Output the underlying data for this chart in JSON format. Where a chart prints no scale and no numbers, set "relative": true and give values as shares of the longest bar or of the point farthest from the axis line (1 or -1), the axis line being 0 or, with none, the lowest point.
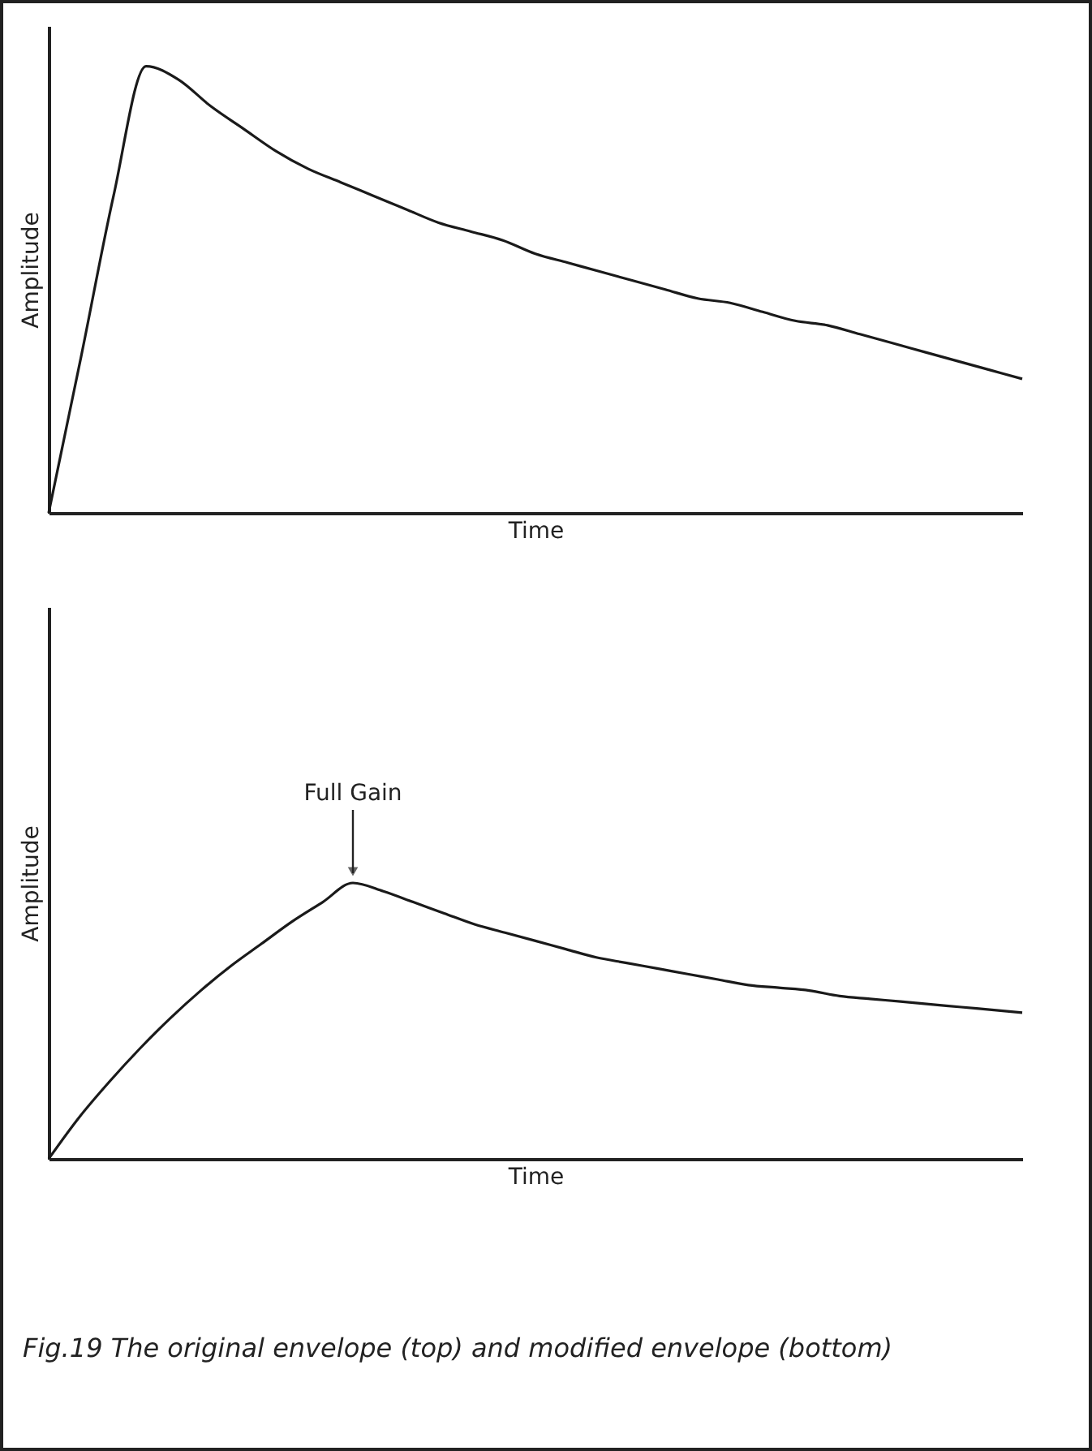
{
  "chart_data": [
    {
      "type": "line",
      "relative": true,
      "ylabel": "Amplitude",
      "xlabel": "Time",
      "categories": [
        null,
        null,
        null,
        null,
        null,
        null,
        null,
        null,
        null,
        null,
        null,
        null,
        null,
        null,
        null,
        null,
        null,
        null,
        null,
        null,
        null,
        null,
        null,
        null,
        null,
        null,
        null,
        null,
        null,
        null,
        null
      ],
      "series": [
        {
          "color": "#1a1a1a",
          "values": [
            0,
            0.35,
            0.71,
            1.0,
            0.97,
            0.91,
            0.86,
            0.81,
            0.77,
            0.74,
            0.71,
            0.68,
            0.65,
            0.63,
            0.61,
            0.58,
            0.56,
            0.54,
            0.52,
            0.5,
            0.48,
            0.47,
            0.45,
            0.43,
            0.42,
            0.4,
            0.38,
            0.36,
            0.34,
            0.32,
            0.3
          ]
        }
      ],
      "marker": "none"
    },
    {
      "type": "line",
      "relative": true,
      "ylabel": "Amplitude",
      "xlabel": "Time",
      "categories": [
        null,
        null,
        null,
        null,
        null,
        null,
        null,
        null,
        null,
        null,
        null,
        null,
        null,
        null,
        null,
        null,
        null,
        null,
        null,
        null,
        null,
        null,
        null,
        null,
        null,
        null,
        null,
        null,
        null,
        null,
        null,
        null,
        null
      ],
      "series": [
        {
          "color": "#1a1a1a",
          "values": [
            0,
            0.15,
            0.28,
            0.4,
            0.51,
            0.61,
            0.7,
            0.78,
            0.86,
            0.93,
            1.0,
            0.97,
            0.93,
            0.89,
            0.85,
            0.82,
            0.79,
            0.76,
            0.73,
            0.71,
            0.69,
            0.67,
            0.65,
            0.63,
            0.62,
            0.61,
            0.59,
            0.58,
            0.57,
            0.56,
            0.55,
            0.54,
            0.53
          ]
        }
      ],
      "marker": "none",
      "annotations": [
        "Full Gain",
        "Fig.19    The original envelope (top) and modified envelope (bottom)"
      ]
    }
  ]
}
